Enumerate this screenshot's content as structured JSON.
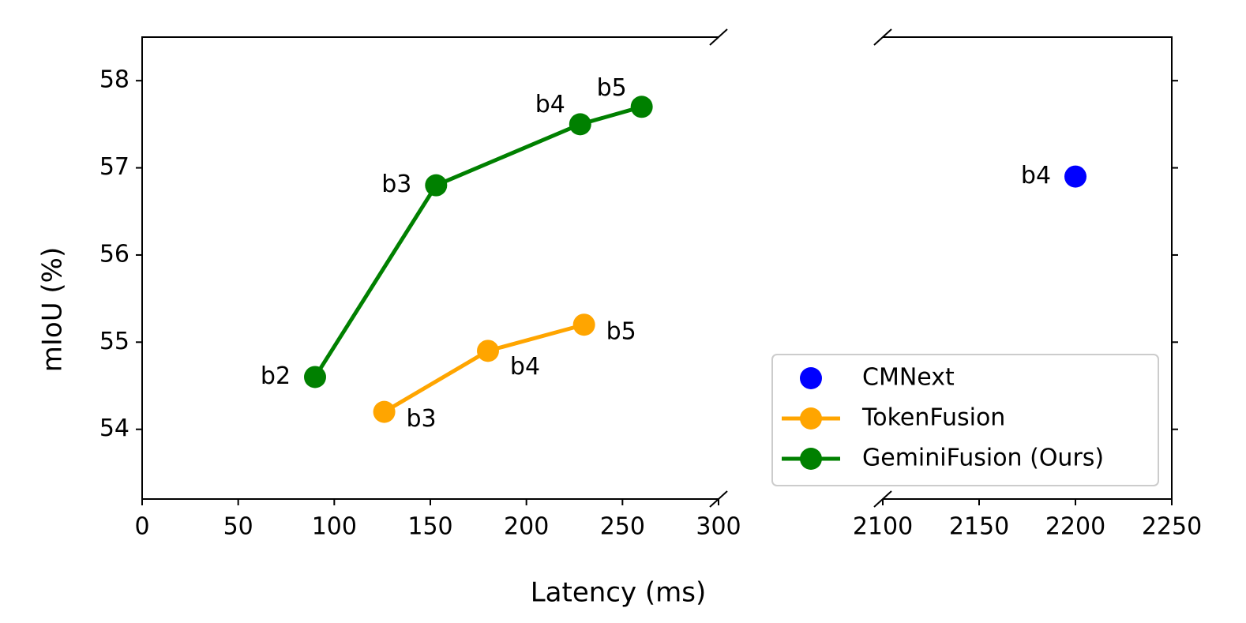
{
  "chart_data": {
    "type": "line",
    "xlabel": "Latency (ms)",
    "ylabel": "mIoU (%)",
    "panels": [
      {
        "xlim": [
          0,
          300
        ],
        "xticks": [
          0,
          50,
          100,
          150,
          200,
          250,
          300
        ]
      },
      {
        "xlim": [
          2100,
          2250
        ],
        "xticks": [
          2100,
          2150,
          2200,
          2250
        ]
      }
    ],
    "ylim": [
      53.2,
      58.5
    ],
    "yticks": [
      54,
      55,
      56,
      57,
      58
    ],
    "legend": "lower right",
    "series": [
      {
        "name": "CMNext",
        "color": "#0000ff",
        "line": false,
        "x": [
          2200
        ],
        "values": [
          56.9
        ],
        "point_labels": [
          "b4"
        ]
      },
      {
        "name": "TokenFusion",
        "color": "#ffa500",
        "line": true,
        "x": [
          126,
          180,
          230
        ],
        "values": [
          54.2,
          54.9,
          55.2
        ],
        "point_labels": [
          "b3",
          "b4",
          "b5"
        ]
      },
      {
        "name": "GeminiFusion (Ours)",
        "color": "#008000",
        "line": true,
        "x": [
          90,
          153,
          228,
          260
        ],
        "values": [
          54.6,
          56.8,
          57.5,
          57.7
        ],
        "point_labels": [
          "b2",
          "b3",
          "b4",
          "b5"
        ]
      }
    ]
  }
}
